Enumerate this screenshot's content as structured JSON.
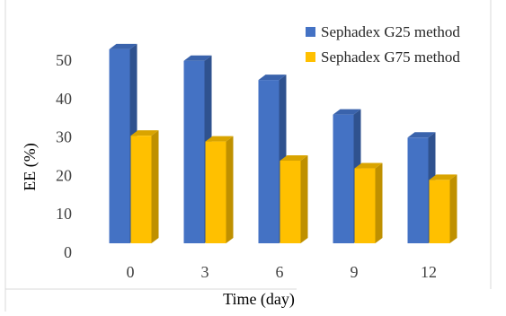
{
  "chart_data": {
    "type": "bar",
    "style": "3d-column",
    "title": "",
    "xlabel": "Time (day)",
    "ylabel": "EE (%)",
    "categories": [
      "0",
      "3",
      "6",
      "9",
      "12"
    ],
    "series": [
      {
        "name": "Sephadex G25 method",
        "values": [
          50.5,
          47.5,
          42.5,
          33.5,
          27.5
        ],
        "color": "#4472C4"
      },
      {
        "name": "Sephadex G75 method",
        "values": [
          28,
          26.5,
          21.5,
          19.5,
          16.5
        ],
        "color": "#FFC000"
      }
    ],
    "ylim": [
      0,
      50
    ],
    "yticks": [
      "0",
      "10",
      "20",
      "30",
      "40",
      "50"
    ],
    "grid": false,
    "legend_position": "top-right"
  }
}
